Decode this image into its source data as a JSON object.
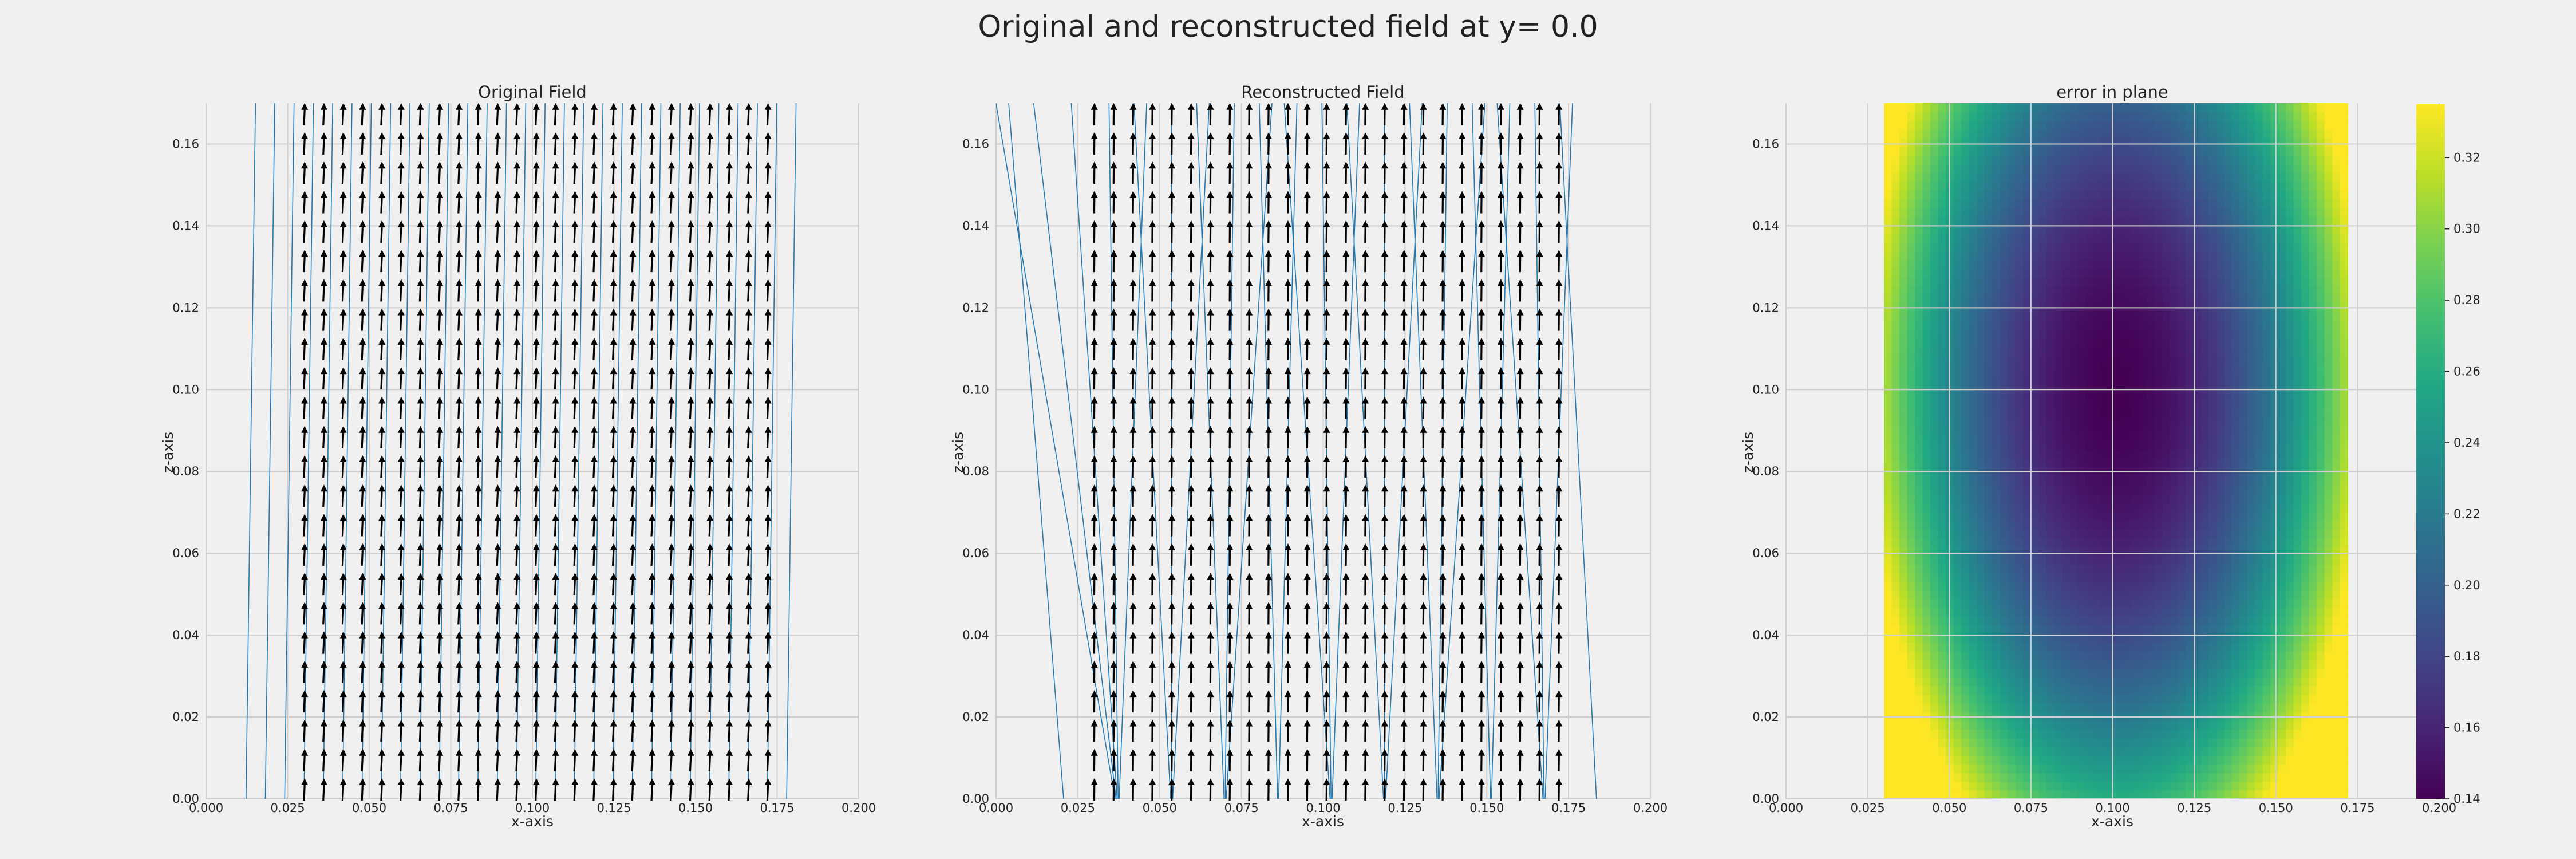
{
  "figure": {
    "title": "Original and reconstructed field at y= 0.0"
  },
  "chart_data": [
    {
      "type": "quiver",
      "title": "Original Field",
      "xlabel": "x-axis",
      "ylabel": "z-axis",
      "xlim": [
        0.0,
        0.2
      ],
      "ylim": [
        0.0,
        0.17
      ],
      "xticks": [
        "0.000",
        "0.025",
        "0.050",
        "0.075",
        "0.100",
        "0.125",
        "0.150",
        "0.175",
        "0.200"
      ],
      "yticks": [
        "0.00",
        "0.02",
        "0.04",
        "0.06",
        "0.08",
        "0.10",
        "0.12",
        "0.14",
        "0.16"
      ],
      "grid": true,
      "arrow_grid": {
        "x_range": [
          0.03,
          0.172
        ],
        "z_range": [
          0.0,
          0.165
        ],
        "nx": 25,
        "nz": 24
      },
      "arrow_direction": "+z",
      "arrow_color": "#000000",
      "streamline_color": "#1f77b4",
      "streamline_slope_dx_per_dz": 0.017
    },
    {
      "type": "quiver",
      "title": "Reconstructed Field",
      "xlabel": "x-axis",
      "ylabel": "z-axis",
      "xlim": [
        0.0,
        0.2
      ],
      "ylim": [
        0.0,
        0.17
      ],
      "xticks": [
        "0.000",
        "0.025",
        "0.050",
        "0.075",
        "0.100",
        "0.125",
        "0.150",
        "0.175",
        "0.200"
      ],
      "yticks": [
        "0.00",
        "0.02",
        "0.04",
        "0.06",
        "0.08",
        "0.10",
        "0.12",
        "0.14",
        "0.16"
      ],
      "grid": true,
      "arrow_grid": {
        "x_range": [
          0.03,
          0.172
        ],
        "z_range": [
          0.0,
          0.165
        ],
        "nx": 25,
        "nz": 24
      },
      "arrow_direction": "+z",
      "arrow_color": "#000000",
      "streamline_color": "#1f77b4",
      "streamline_slope_dx_per_dz": 0.0
    },
    {
      "type": "heatmap",
      "title": "error in plane",
      "xlabel": "x-axis",
      "ylabel": "z-axis",
      "xlim": [
        0.0,
        0.2
      ],
      "ylim": [
        0.0,
        0.17
      ],
      "xticks": [
        "0.000",
        "0.025",
        "0.050",
        "0.075",
        "0.100",
        "0.125",
        "0.150",
        "0.175",
        "0.200"
      ],
      "yticks": [
        "0.00",
        "0.02",
        "0.04",
        "0.06",
        "0.08",
        "0.10",
        "0.12",
        "0.14",
        "0.16"
      ],
      "grid": true,
      "data_extent": {
        "x": [
          0.03,
          0.172
        ],
        "z": [
          0.0,
          0.17
        ]
      },
      "minimum_at": {
        "x": 0.101,
        "z": 0.1
      },
      "value_range": [
        0.14,
        0.335
      ],
      "colormap": "viridis",
      "colorbar": {
        "ticks": [
          "0.14",
          "0.16",
          "0.18",
          "0.20",
          "0.22",
          "0.24",
          "0.26",
          "0.28",
          "0.30",
          "0.32"
        ],
        "range": [
          0.14,
          0.335
        ]
      }
    }
  ]
}
